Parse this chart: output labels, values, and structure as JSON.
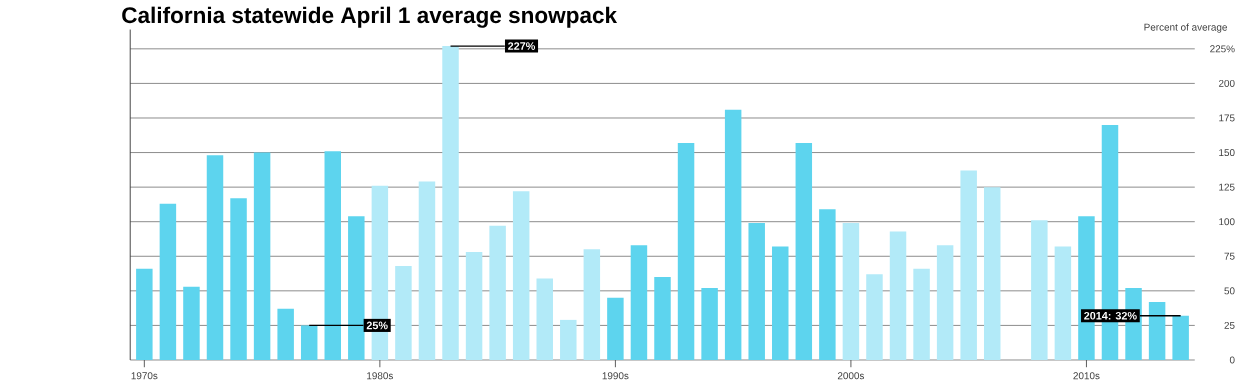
{
  "chart_data": {
    "type": "bar",
    "title": "California statewide April 1 average snowpack",
    "ylabel": "Percent of average",
    "x": [
      1970,
      1971,
      1972,
      1973,
      1974,
      1975,
      1976,
      1977,
      1978,
      1979,
      1980,
      1981,
      1982,
      1983,
      1984,
      1985,
      1986,
      1987,
      1988,
      1989,
      1990,
      1991,
      1992,
      1993,
      1994,
      1995,
      1996,
      1997,
      1998,
      1999,
      2000,
      2001,
      2002,
      2003,
      2004,
      2005,
      2006,
      2007,
      2008,
      2009,
      2010,
      2011,
      2012,
      2013,
      2014
    ],
    "values": [
      66,
      113,
      53,
      148,
      117,
      150,
      37,
      25,
      151,
      104,
      126,
      68,
      129,
      227,
      78,
      97,
      122,
      59,
      29,
      80,
      45,
      83,
      60,
      157,
      52,
      181,
      99,
      82,
      157,
      109,
      99,
      62,
      93,
      66,
      83,
      137,
      125,
      null,
      101,
      82,
      104,
      170,
      52,
      42,
      32
    ],
    "colors": [
      "#5dd4ee",
      "#5dd4ee",
      "#5dd4ee",
      "#5dd4ee",
      "#5dd4ee",
      "#5dd4ee",
      "#5dd4ee",
      "#5dd4ee",
      "#5dd4ee",
      "#5dd4ee",
      "#b2eaf8",
      "#b2eaf8",
      "#b2eaf8",
      "#b2eaf8",
      "#b2eaf8",
      "#b2eaf8",
      "#b2eaf8",
      "#b2eaf8",
      "#b2eaf8",
      "#b2eaf8",
      "#5dd4ee",
      "#5dd4ee",
      "#5dd4ee",
      "#5dd4ee",
      "#5dd4ee",
      "#5dd4ee",
      "#5dd4ee",
      "#5dd4ee",
      "#5dd4ee",
      "#5dd4ee",
      "#b2eaf8",
      "#b2eaf8",
      "#b2eaf8",
      "#b2eaf8",
      "#b2eaf8",
      "#b2eaf8",
      "#b2eaf8",
      "#b2eaf8",
      "#b2eaf8",
      "#b2eaf8",
      "#5dd4ee",
      "#5dd4ee",
      "#5dd4ee",
      "#5dd4ee",
      "#5dd4ee"
    ],
    "xlim": [
      1969.4,
      2014.6
    ],
    "xticks": [
      {
        "value": 1970,
        "label": "1970s"
      },
      {
        "value": 1980,
        "label": "1980s"
      },
      {
        "value": 1990,
        "label": "1990s"
      },
      {
        "value": 2000,
        "label": "2000s"
      },
      {
        "value": 2010,
        "label": "2010s"
      }
    ],
    "ylim": [
      0,
      232
    ],
    "yticks": [
      0,
      25,
      50,
      75,
      100,
      125,
      150,
      175,
      200,
      {
        "value": 225,
        "label": "225%"
      }
    ],
    "grid": "y",
    "annotations": [
      {
        "text": "227%",
        "x": 1983,
        "y": 227
      },
      {
        "text": "25%",
        "x": 1977,
        "y": 25
      },
      {
        "text": "2014: 32%",
        "x": 2014,
        "y": 32
      }
    ]
  }
}
